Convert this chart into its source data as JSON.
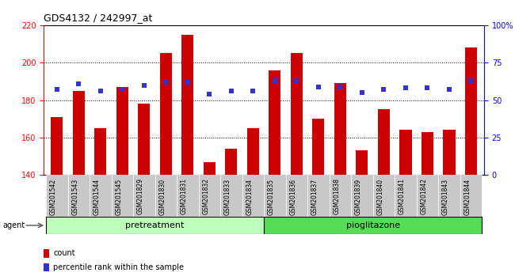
{
  "title": "GDS4132 / 242997_at",
  "categories": [
    "GSM201542",
    "GSM201543",
    "GSM201544",
    "GSM201545",
    "GSM201829",
    "GSM201830",
    "GSM201831",
    "GSM201832",
    "GSM201833",
    "GSM201834",
    "GSM201835",
    "GSM201836",
    "GSM201837",
    "GSM201838",
    "GSM201839",
    "GSM201840",
    "GSM201841",
    "GSM201842",
    "GSM201843",
    "GSM201844"
  ],
  "bar_values": [
    171,
    185,
    165,
    187,
    178,
    205,
    215,
    147,
    154,
    165,
    196,
    205,
    170,
    189,
    153,
    175,
    164,
    163,
    164,
    208
  ],
  "percentile_values": [
    57,
    61,
    56,
    57,
    60,
    62,
    62,
    54,
    56,
    56,
    63,
    63,
    59,
    59,
    55,
    57,
    58,
    58,
    57,
    63
  ],
  "bar_color": "#cc0000",
  "percentile_color": "#3333cc",
  "ylim_left": [
    140,
    220
  ],
  "ylim_right": [
    0,
    100
  ],
  "yticks_left": [
    140,
    160,
    180,
    200,
    220
  ],
  "yticks_right": [
    0,
    25,
    50,
    75,
    100
  ],
  "group1_label": "pretreatment",
  "group2_label": "pioglitazone",
  "n_pretreatment": 10,
  "n_pioglitazone": 10,
  "agent_label": "agent",
  "legend_count": "count",
  "legend_percentile": "percentile rank within the sample",
  "bar_width": 0.55,
  "group_color1": "#bbffbb",
  "group_color2": "#55dd55"
}
